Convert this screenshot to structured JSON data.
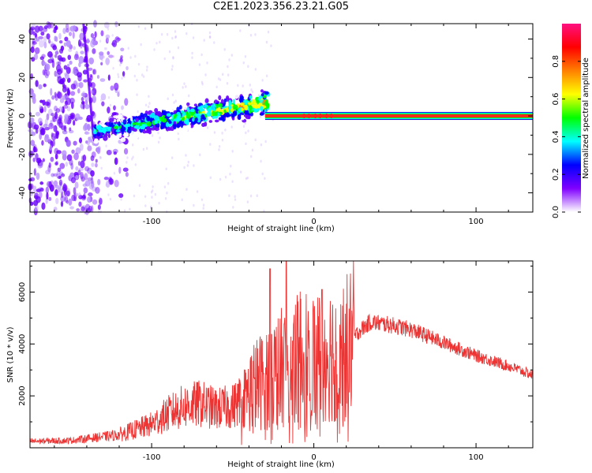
{
  "title": "C2E1.2023.356.23.21.G05",
  "chart_data": [
    {
      "type": "heatmap",
      "xlabel": "Height of straight line (km)",
      "ylabel": "Frequency (Hz)",
      "xlim": [
        -175,
        135
      ],
      "ylim": [
        -50,
        48
      ],
      "xticks": [
        -100,
        0,
        100
      ],
      "yticks": [
        -40,
        -20,
        0,
        20,
        40
      ],
      "colorbar": {
        "label": "Normalized spectral amplitude",
        "range": [
          0,
          1
        ],
        "ticks": [
          0.0,
          0.2,
          0.4,
          0.6,
          0.8
        ],
        "colormap": [
          "#ffffff",
          "#6a00ff",
          "#0000ff",
          "#00ffff",
          "#00ff00",
          "#ffff00",
          "#ff8000",
          "#ff0000",
          "#ff0080"
        ]
      },
      "features": {
        "carrier_line": {
          "x_start": -30,
          "x_end": 135,
          "frequency": 0,
          "amplitude": 0.95,
          "color": "#ff2020"
        },
        "noise_region": {
          "x_start": -175,
          "x_end": -135,
          "amplitude_max": 0.2
        },
        "diagonal_streak": {
          "x_start": -142,
          "x_end": -136,
          "freq_start": 48,
          "freq_end": -10
        },
        "scatter_band": {
          "x_start": -135,
          "x_end": -28,
          "freq_start": -8,
          "freq_end": 7,
          "spread_hz": 6
        }
      }
    },
    {
      "type": "line",
      "xlabel": "Height of straight line (km)",
      "ylabel": "SNR (10 * v/v)",
      "xlim": [
        -175,
        135
      ],
      "ylim": [
        0,
        7200
      ],
      "xticks": [
        -100,
        0,
        100
      ],
      "yticks": [
        2000,
        4000,
        6000
      ],
      "color": "#ee3333",
      "envelope": {
        "x": [
          -175,
          -150,
          -120,
          -100,
          -90,
          -80,
          -70,
          -60,
          -50,
          -40,
          -30,
          -25,
          -20,
          -15,
          -10,
          -5,
          0,
          10,
          20,
          28,
          35,
          50,
          60,
          80,
          100,
          120,
          135
        ],
        "y": [
          250,
          280,
          500,
          900,
          1300,
          1600,
          1700,
          1500,
          1600,
          2200,
          2700,
          2900,
          3100,
          3300,
          3400,
          3600,
          3500,
          3700,
          3900,
          4500,
          4850,
          4700,
          4550,
          4050,
          3550,
          3150,
          2800
        ]
      },
      "peaks": [
        {
          "x": -27,
          "y": 6900
        },
        {
          "x": -17,
          "y": 7200
        },
        {
          "x": 5,
          "y": 6100
        }
      ]
    }
  ]
}
